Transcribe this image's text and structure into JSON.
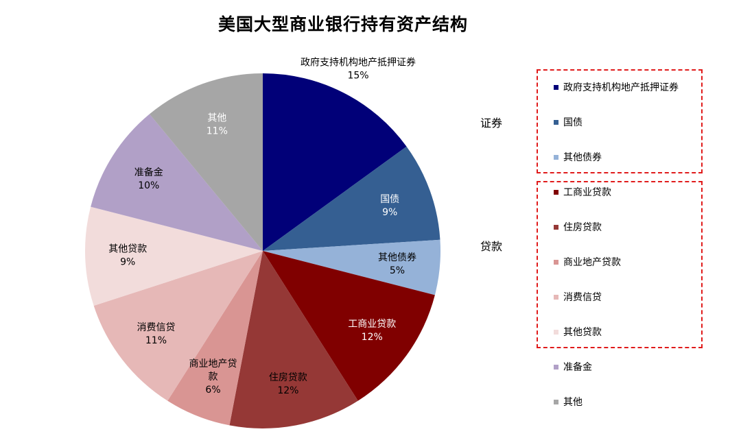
{
  "chart_data": {
    "type": "pie",
    "title": "美国大型商业银行持有资产结构",
    "slices": [
      {
        "label": "政府支持机构地产抵押证券",
        "value": 15,
        "value_label": "15%",
        "color": "#010078",
        "label_color": "#000000"
      },
      {
        "label": "国债",
        "value": 9,
        "value_label": "9%",
        "color": "#355f92",
        "label_color": "#ffffff"
      },
      {
        "label": "其他债券",
        "value": 5,
        "value_label": "5%",
        "color": "#95b2d8",
        "label_color": "#000000"
      },
      {
        "label": "工商业贷款",
        "value": 12,
        "value_label": "12%",
        "color": "#800000",
        "label_color": "#ffffff"
      },
      {
        "label": "住房贷款",
        "value": 12,
        "value_label": "12%",
        "color": "#953836",
        "label_color": "#000000"
      },
      {
        "label": "商业地产贷款",
        "label_lines": [
          "商业地产贷",
          "款"
        ],
        "value": 6,
        "value_label": "6%",
        "color": "#d99593",
        "label_color": "#000000"
      },
      {
        "label": "消费信贷",
        "value": 11,
        "value_label": "11%",
        "color": "#e6b8b7",
        "label_color": "#000000"
      },
      {
        "label": "其他贷款",
        "value": 9,
        "value_label": "9%",
        "color": "#f2dcdb",
        "label_color": "#000000"
      },
      {
        "label": "准备金",
        "value": 10,
        "value_label": "10%",
        "color": "#b1a0c7",
        "label_color": "#000000"
      },
      {
        "label": "其他",
        "value": 11,
        "value_label": "11%",
        "color": "#a6a6a6",
        "label_color": "#ffffff"
      }
    ],
    "legend": {
      "placement": "right",
      "items": [
        "政府支持机构地产抵押证券",
        "国债",
        "其他债券",
        "工商业贷款",
        "住房贷款",
        "商业地产贷款",
        "消费信贷",
        "其他贷款",
        "准备金",
        "其他"
      ]
    },
    "groups": [
      {
        "name": "证券",
        "items": [
          "政府支持机构地产抵押证券",
          "国债",
          "其他债券"
        ],
        "border_color": "#e01a1a"
      },
      {
        "name": "贷款",
        "items": [
          "工商业贷款",
          "住房贷款",
          "商业地产贷款",
          "消费信贷",
          "其他贷款"
        ],
        "border_color": "#e01a1a"
      }
    ]
  }
}
